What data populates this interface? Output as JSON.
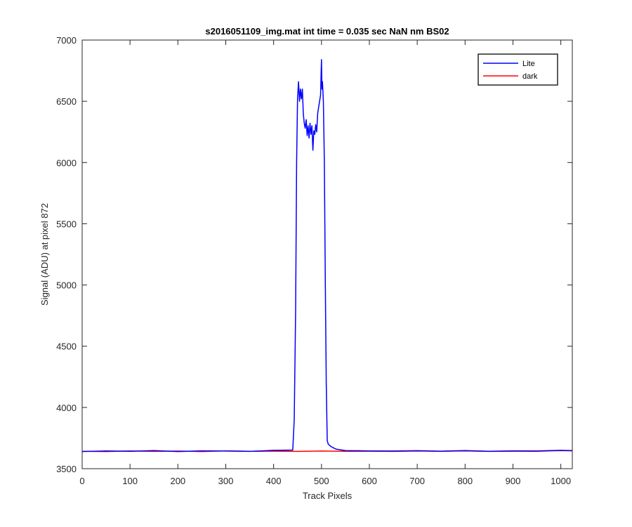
{
  "chart_data": {
    "type": "line",
    "title": "s2016051109_img.mat int time = 0.035 sec  NaN nm BS02",
    "xlabel": "Track Pixels",
    "ylabel": "Signal (ADU) at pixel 872",
    "xlim": [
      0,
      1024
    ],
    "ylim": [
      3500,
      7000
    ],
    "xticks": [
      0,
      100,
      200,
      300,
      400,
      500,
      600,
      700,
      800,
      900,
      1000
    ],
    "yticks": [
      3500,
      4000,
      4500,
      5000,
      5500,
      6000,
      6500,
      7000
    ],
    "grid": false,
    "legend_position": "top-right",
    "series": [
      {
        "name": "Lite",
        "color": "#0000ff",
        "x": [
          0,
          50,
          100,
          150,
          200,
          250,
          300,
          350,
          400,
          440,
          443,
          446,
          448,
          450,
          452,
          454,
          456,
          458,
          460,
          462,
          464,
          466,
          468,
          470,
          472,
          474,
          476,
          478,
          480,
          482,
          484,
          486,
          488,
          490,
          492,
          494,
          496,
          498,
          500,
          501,
          502,
          504,
          506,
          508,
          510,
          512,
          514,
          520,
          530,
          550,
          600,
          650,
          700,
          750,
          800,
          850,
          900,
          950,
          1000,
          1024
        ],
        "y": [
          3640,
          3645,
          3642,
          3648,
          3640,
          3646,
          3644,
          3641,
          3650,
          3652,
          3900,
          4800,
          6000,
          6520,
          6660,
          6500,
          6600,
          6520,
          6600,
          6400,
          6320,
          6280,
          6350,
          6220,
          6300,
          6200,
          6320,
          6230,
          6300,
          6100,
          6260,
          6230,
          6310,
          6250,
          6400,
          6450,
          6500,
          6550,
          6840,
          6600,
          6660,
          6500,
          6000,
          5000,
          4200,
          3730,
          3700,
          3680,
          3660,
          3648,
          3645,
          3644,
          3647,
          3643,
          3648,
          3642,
          3646,
          3645,
          3650,
          3648
        ]
      },
      {
        "name": "dark",
        "color": "#ff0000",
        "x": [
          0,
          50,
          100,
          150,
          200,
          250,
          300,
          350,
          400,
          450,
          500,
          550,
          600,
          650,
          700,
          750,
          800,
          850,
          900,
          950,
          1000,
          1024
        ],
        "y": [
          3642,
          3640,
          3645,
          3641,
          3644,
          3640,
          3646,
          3642,
          3643,
          3641,
          3644,
          3642,
          3643,
          3641,
          3644,
          3642,
          3645,
          3641,
          3643,
          3642,
          3648,
          3646
        ]
      }
    ]
  }
}
